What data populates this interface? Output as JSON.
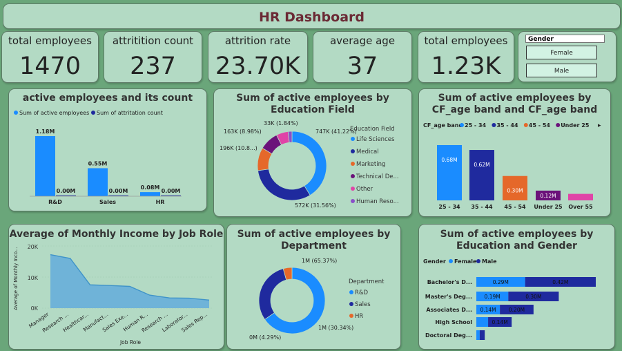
{
  "header": {
    "title": "HR Dashboard"
  },
  "kpis": [
    {
      "label": "total employees",
      "value": "1470"
    },
    {
      "label": "attritition count",
      "value": "237"
    },
    {
      "label": "attrition rate",
      "value": "23.70K"
    },
    {
      "label": "average age",
      "value": "37"
    },
    {
      "label": "total employees",
      "value": "1.23K"
    }
  ],
  "slicer": {
    "title": "Gender",
    "options": [
      "Female",
      "Male"
    ]
  },
  "colors": {
    "blue": "#1a8cff",
    "navy": "#1f2a9e",
    "orange": "#e5682a",
    "purple": "#6b127a",
    "pink": "#e044a7",
    "violet": "#8a4fc9",
    "title": "#6b2a35"
  },
  "chart_data": [
    {
      "type": "bar",
      "title": "active employees and its count",
      "categories": [
        "R&D",
        "Sales",
        "HR"
      ],
      "series": [
        {
          "name": "Sum of active employees",
          "values": [
            1.18,
            0.55,
            0.08
          ],
          "labels": [
            "1.18M",
            "0.55M",
            "0.08M"
          ]
        },
        {
          "name": "Sum of attritation count",
          "values": [
            0.0,
            0.0,
            0.0
          ],
          "labels": [
            "0.00M",
            "0.00M",
            "0.00M"
          ]
        }
      ]
    },
    {
      "type": "pie",
      "title": "Sum of active employees by Education Field",
      "legend_title": "Education Field",
      "categories": [
        "Life Sciences",
        "Medical",
        "Marketing",
        "Technical De...",
        "Other",
        "Human Reso..."
      ],
      "values": [
        41.22,
        31.56,
        10.8,
        8.98,
        5.6,
        1.84
      ],
      "labels": [
        "747K (41.22%)",
        "572K (31.56%)",
        "196K (10.8...)",
        "163K (8.98%)",
        "",
        "33K (1.84%)"
      ]
    },
    {
      "type": "bar",
      "title": "Sum of active employees by CF_age band and CF_age band",
      "legend_title": "CF_age band",
      "categories": [
        "25 - 34",
        "35 - 44",
        "45 - 54",
        "Under 25",
        "Over 55"
      ],
      "values": [
        0.68,
        0.62,
        0.3,
        0.12,
        0.08
      ],
      "labels": [
        "0.68M",
        "0.62M",
        "0.30M",
        "0.12M",
        ""
      ]
    },
    {
      "type": "area",
      "title": "Average of Monthly Income by Job Role",
      "xlabel": "Job Role",
      "ylabel": "Average of Monthly Inco...",
      "categories": [
        "Manager",
        "Research ...",
        "Healthcar...",
        "Manufact...",
        "Sales Exe...",
        "Human R...",
        "Research ...",
        "Laborator...",
        "Sales Rep..."
      ],
      "values": [
        17200,
        16000,
        7500,
        7300,
        7000,
        4200,
        3300,
        3200,
        2600
      ],
      "yticks": [
        "0K",
        "10K",
        "20K"
      ],
      "ylim": [
        0,
        20000
      ]
    },
    {
      "type": "pie",
      "title": "Sum of active employees by Department",
      "legend_title": "Department",
      "categories": [
        "R&D",
        "Sales",
        "HR"
      ],
      "values": [
        65.37,
        30.34,
        4.29
      ],
      "labels": [
        "1M (65.37%)",
        "1M (30.34%)",
        "0M (4.29%)"
      ]
    },
    {
      "type": "bar",
      "title": "Sum of active employees by Education and Gender",
      "legend_title": "Gender",
      "categories": [
        "Bachelor's D...",
        "Master's Deg...",
        "Associates D...",
        "High School",
        "Doctoral Deg..."
      ],
      "series": [
        {
          "name": "Female",
          "values": [
            0.29,
            0.19,
            0.14,
            0.07,
            0.02
          ],
          "labels": [
            "0.29M",
            "0.19M",
            "0.14M",
            "",
            ""
          ]
        },
        {
          "name": "Male",
          "values": [
            0.42,
            0.3,
            0.2,
            0.14,
            0.03
          ],
          "labels": [
            "0.42M",
            "0.30M",
            "0.20M",
            "0.14M",
            ""
          ]
        }
      ]
    }
  ]
}
